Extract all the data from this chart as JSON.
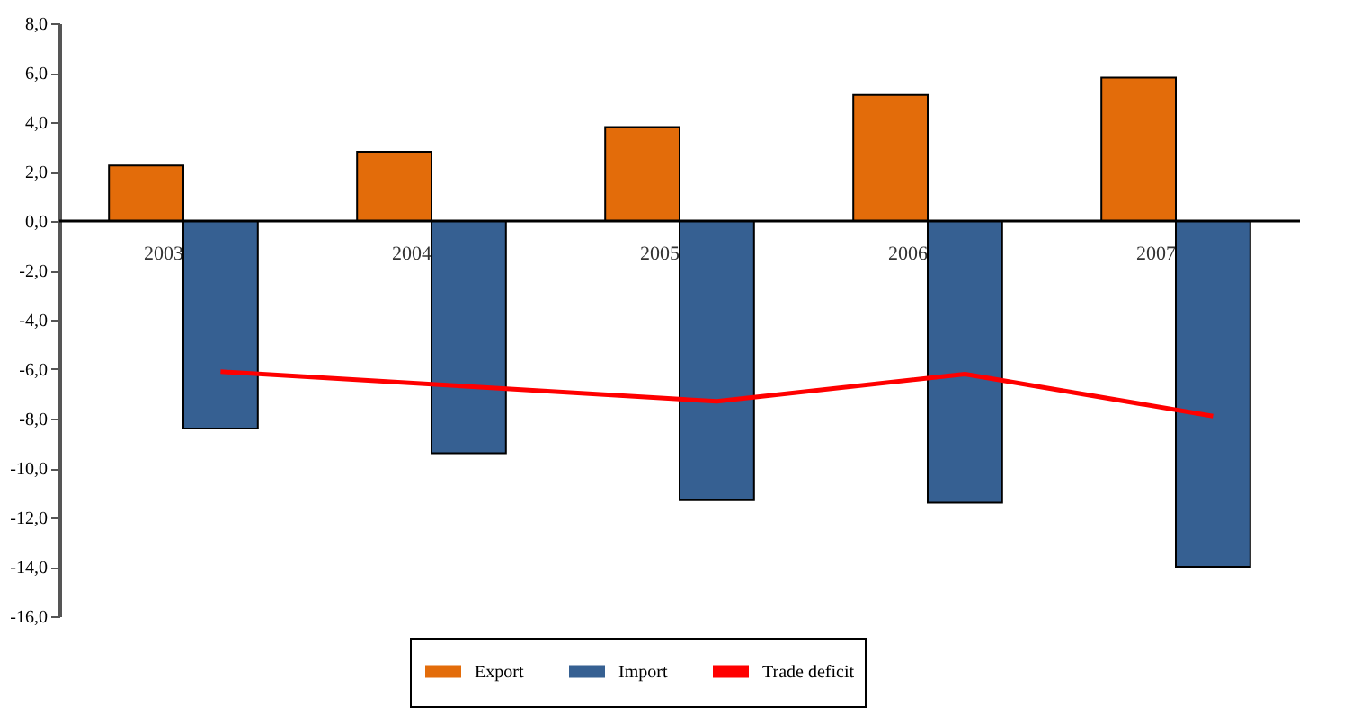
{
  "chart_data": {
    "type": "bar",
    "categories": [
      "2003",
      "2004",
      "2005",
      "2006",
      "2007"
    ],
    "series": [
      {
        "name": "Export",
        "color": "#e36c0a",
        "values": [
          2.25,
          2.8,
          3.8,
          5.1,
          5.8
        ]
      },
      {
        "name": "Import",
        "color": "#366092",
        "values": [
          -8.4,
          -9.4,
          -11.3,
          -11.4,
          -14.0
        ]
      },
      {
        "name": "Trade deficit",
        "type": "line",
        "color": "#ff0000",
        "values": [
          -6.1,
          -6.7,
          -7.3,
          -6.2,
          -7.9
        ]
      }
    ],
    "ylim": [
      -16,
      8
    ],
    "yticks": [
      {
        "value": -16,
        "label": "-16,0"
      },
      {
        "value": -14,
        "label": "-14,0"
      },
      {
        "value": -12,
        "label": "-12,0"
      },
      {
        "value": -10,
        "label": "-10,0"
      },
      {
        "value": -8,
        "label": "-8,0"
      },
      {
        "value": -6,
        "label": "-6,0"
      },
      {
        "value": -4,
        "label": "-4,0"
      },
      {
        "value": -2,
        "label": "-2,0"
      },
      {
        "value": 0,
        "label": "0,0"
      },
      {
        "value": 2,
        "label": "2,0"
      },
      {
        "value": 4,
        "label": "4,0"
      },
      {
        "value": 6,
        "label": "6,0"
      },
      {
        "value": 8,
        "label": "8,0"
      }
    ],
    "grid": false,
    "legend": "bottom",
    "marker": "none",
    "line_style": "solid"
  }
}
